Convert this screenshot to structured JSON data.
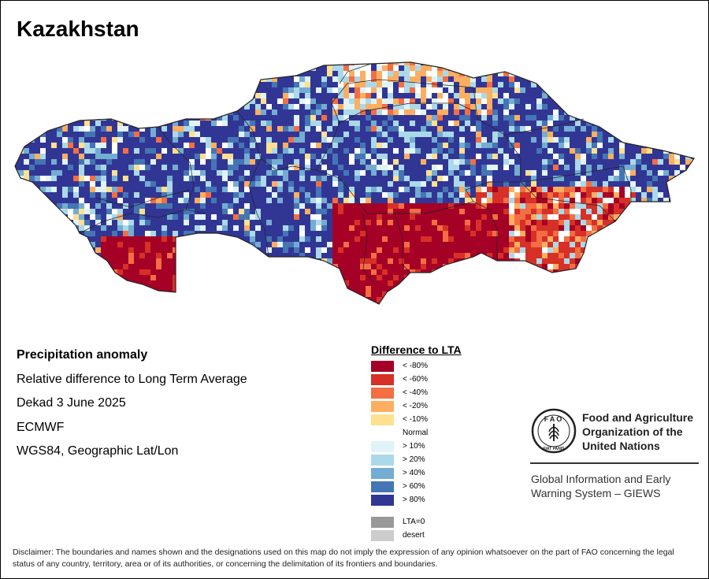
{
  "title": "Kazakhstan",
  "info": {
    "heading": "Precipitation anomaly",
    "line1": "Relative difference to Long Term Average",
    "line2": "Dekad 3 June 2025",
    "line3": "ECMWF",
    "line4": "WGS84, Geographic Lat/Lon"
  },
  "legend": {
    "title": "Difference to LTA",
    "items": [
      {
        "label": "< -80%",
        "color": "#a50026"
      },
      {
        "label": "< -60%",
        "color": "#d73027"
      },
      {
        "label": "< -40%",
        "color": "#f46d43"
      },
      {
        "label": "< -20%",
        "color": "#fdae61"
      },
      {
        "label": "< -10%",
        "color": "#fee090"
      },
      {
        "label": "Normal",
        "color": "#ffffff"
      },
      {
        "label": "> 10%",
        "color": "#e0f3f8"
      },
      {
        "label": "> 20%",
        "color": "#abd9e9"
      },
      {
        "label": "> 40%",
        "color": "#74add1"
      },
      {
        "label": "> 60%",
        "color": "#4575b4"
      },
      {
        "label": "> 80%",
        "color": "#313695"
      },
      {
        "label": "LTA=0",
        "color": "#999999"
      },
      {
        "label": "desert",
        "color": "#cccccc"
      }
    ]
  },
  "org": {
    "line1": "Food and Agriculture",
    "line2": "Organization of the",
    "line3": "United Nations",
    "program_line1": "Global Information and Early",
    "program_line2": "Warning System – GIEWS",
    "logo_letters": "FAO",
    "logo_motto": "FIAT PANIS"
  },
  "disclaimer": "Disclaimer: The boundaries and names shown and the designations used on this map do not imply the expression of any opinion whatsoever on the part of FAO concerning the legal status of any country, territory, area or of its authorities, or concerning the delimitation of its frontiers and boundaries."
}
